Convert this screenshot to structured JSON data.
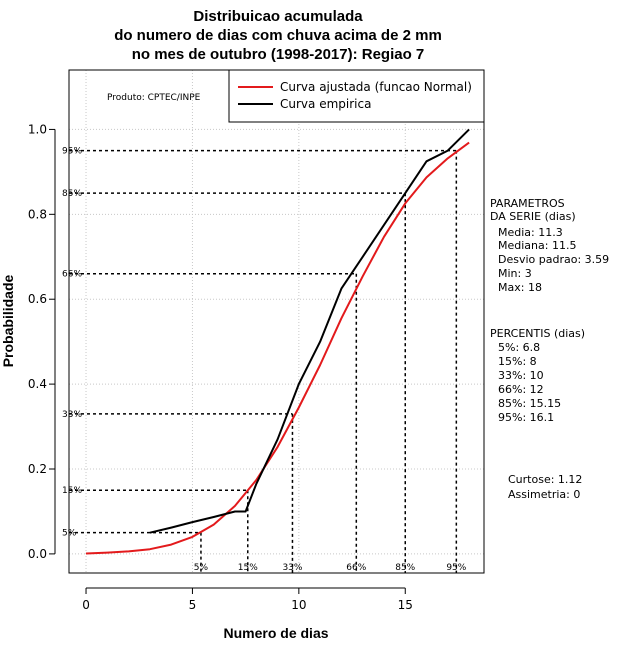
{
  "chart_data": {
    "type": "line",
    "title_lines": [
      "Distribuicao acumulada",
      "do numero de dias com chuva acima de 2 mm",
      "no mes de outubro (1998-2017): Regiao 7"
    ],
    "xlabel": "Numero de dias",
    "ylabel": "Probabilidade",
    "xlim": [
      -0.8,
      18.7
    ],
    "ylim": [
      -0.045,
      1.14
    ],
    "x_ticks": [
      0,
      5,
      10,
      15
    ],
    "y_ticks": [
      0.0,
      0.2,
      0.4,
      0.6,
      0.8,
      1.0
    ],
    "y_tick_labels": [
      "0.0",
      "0.2",
      "0.4",
      "0.6",
      "0.8",
      "1.0"
    ],
    "grid": true,
    "credit": "Produto: CPTEC/INPE",
    "legend": [
      {
        "label": "Curva ajustada (funcao Normal)",
        "color": "#e31a1c"
      },
      {
        "label": "Curva empirica",
        "color": "#000000"
      }
    ],
    "series": [
      {
        "name": "Curva ajustada (funcao Normal)",
        "color": "#e31a1c",
        "x": [
          0,
          1,
          2,
          3,
          4,
          5,
          6,
          7,
          8,
          9,
          10,
          11,
          12,
          13,
          14,
          15,
          16,
          17,
          18
        ],
        "y": [
          0.001,
          0.003,
          0.006,
          0.011,
          0.022,
          0.04,
          0.069,
          0.113,
          0.174,
          0.252,
          0.345,
          0.445,
          0.555,
          0.654,
          0.747,
          0.826,
          0.887,
          0.932,
          0.969
        ]
      },
      {
        "name": "Curva empirica",
        "color": "#000000",
        "x": [
          3,
          4,
          5,
          6,
          7,
          7.5,
          8,
          9,
          10,
          11,
          12,
          13,
          14,
          15,
          16,
          17,
          18
        ],
        "y": [
          0.05,
          0.062,
          0.075,
          0.087,
          0.1,
          0.1,
          0.165,
          0.27,
          0.4,
          0.5,
          0.625,
          0.7,
          0.775,
          0.85,
          0.925,
          0.95,
          1.0
        ]
      }
    ],
    "percentiles": [
      {
        "label": "5%",
        "p": 0.05,
        "x": 5.4
      },
      {
        "label": "15%",
        "p": 0.15,
        "x": 7.6
      },
      {
        "label": "33%",
        "p": 0.33,
        "x": 9.7
      },
      {
        "label": "66%",
        "p": 0.66,
        "x": 12.7
      },
      {
        "label": "85%",
        "p": 0.85,
        "x": 15.0
      },
      {
        "label": "95%",
        "p": 0.95,
        "x": 17.4
      }
    ],
    "parametros": [
      "PARAMETROS",
      "DA SERIE (dias)",
      "Media: 11.3",
      "Mediana: 11.5",
      "Desvio padrao: 3.59",
      "Min: 3",
      "Max: 18"
    ],
    "percentis": [
      "PERCENTIS (dias)",
      "5%: 6.8",
      "15%: 8",
      "33%: 10",
      "66%: 12",
      "85%: 15.15",
      "95%: 16.1"
    ],
    "curtose": "Curtose: 1.12",
    "assimetria": "Assimetria: 0"
  }
}
